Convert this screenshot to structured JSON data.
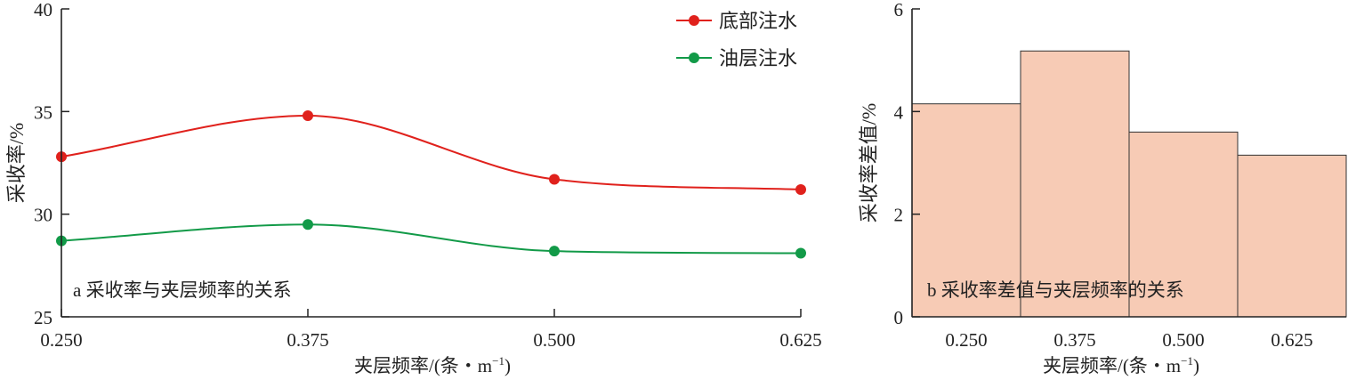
{
  "chart_data": [
    {
      "type": "line",
      "panel_caption": "a 采收率与夹层频率的关系",
      "xlabel": "夹层频率/(条・m",
      "xlabel_sup": "−1",
      "xlabel_close": ")",
      "ylabel": "采收率/%",
      "x": [
        0.25,
        0.375,
        0.5,
        0.625
      ],
      "x_tick_labels": [
        "0.250",
        "0.375",
        "0.500",
        "0.625"
      ],
      "xlim": [
        0.25,
        0.625
      ],
      "ylim": [
        25,
        40
      ],
      "y_ticks": [
        25,
        30,
        35,
        40
      ],
      "y_tick_labels": [
        "25",
        "30",
        "35",
        "40"
      ],
      "legend_position": "top-right",
      "grid": false,
      "series": [
        {
          "name": "底部注水",
          "color": "#e0211c",
          "values": [
            32.8,
            34.8,
            31.7,
            31.2
          ]
        },
        {
          "name": "油层注水",
          "color": "#129a48",
          "values": [
            28.7,
            29.5,
            28.2,
            28.1
          ]
        }
      ]
    },
    {
      "type": "bar",
      "panel_caption": "b 采收率差值与夹层频率的关系",
      "xlabel": "夹层频率/(条・m",
      "xlabel_sup": "−1",
      "xlabel_close": ")",
      "ylabel": "采收率差值/%",
      "categories": [
        "0.250",
        "0.375",
        "0.500",
        "0.625"
      ],
      "values": [
        4.15,
        5.18,
        3.6,
        3.15
      ],
      "ylim": [
        0,
        6
      ],
      "y_ticks": [
        0,
        2,
        4,
        6
      ],
      "y_tick_labels": [
        "0",
        "2",
        "4",
        "6"
      ],
      "bar_color": "#f7cbb5",
      "grid": false
    }
  ]
}
